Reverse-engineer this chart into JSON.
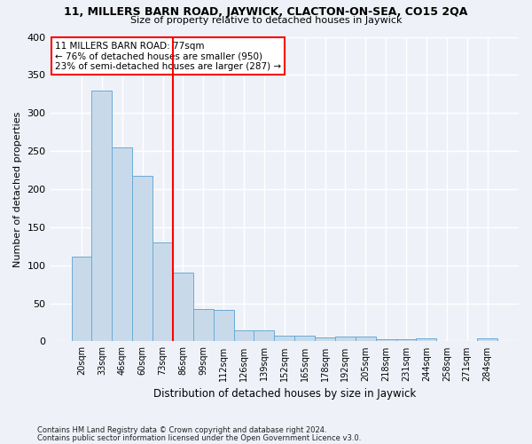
{
  "title1": "11, MILLERS BARN ROAD, JAYWICK, CLACTON-ON-SEA, CO15 2QA",
  "title2": "Size of property relative to detached houses in Jaywick",
  "xlabel": "Distribution of detached houses by size in Jaywick",
  "ylabel": "Number of detached properties",
  "footer1": "Contains HM Land Registry data © Crown copyright and database right 2024.",
  "footer2": "Contains public sector information licensed under the Open Government Licence v3.0.",
  "bar_labels": [
    "20sqm",
    "33sqm",
    "46sqm",
    "60sqm",
    "73sqm",
    "86sqm",
    "99sqm",
    "112sqm",
    "126sqm",
    "139sqm",
    "152sqm",
    "165sqm",
    "178sqm",
    "192sqm",
    "205sqm",
    "218sqm",
    "231sqm",
    "244sqm",
    "258sqm",
    "271sqm",
    "284sqm"
  ],
  "bar_values": [
    111,
    329,
    255,
    218,
    130,
    90,
    43,
    41,
    15,
    15,
    8,
    8,
    5,
    6,
    6,
    3,
    3,
    4,
    0,
    0,
    4
  ],
  "bar_color": "#c8daea",
  "bar_edgecolor": "#6aaad4",
  "vline_x": 4.5,
  "vline_color": "red",
  "annotation_title": "11 MILLERS BARN ROAD: 77sqm",
  "annotation_line1": "← 76% of detached houses are smaller (950)",
  "annotation_line2": "23% of semi-detached houses are larger (287) →",
  "annotation_box_edgecolor": "red",
  "ylim": [
    0,
    400
  ],
  "yticks": [
    0,
    50,
    100,
    150,
    200,
    250,
    300,
    350,
    400
  ],
  "bg_color": "#eef2f8",
  "plot_bg_color": "#eef2f8",
  "grid_color": "white"
}
